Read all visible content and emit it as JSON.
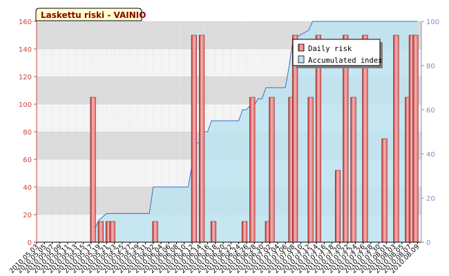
{
  "title": "Laskettu riski - VAINIO",
  "colors": {
    "bar": "#e86a6a",
    "bar_dark": "#b03030",
    "bar_light": "#f8b4b4",
    "area": "#bde3f0",
    "area_line": "#3a6cc8",
    "left_axis": "#cc4444",
    "right_axis": "#8888cc",
    "title_bg": "#ffffd0",
    "title_text": "#8b0000"
  },
  "chart_data": {
    "type": "bar",
    "title": "Laskettu riski - VAINIO",
    "xlabel": "",
    "ylabel": "",
    "ylim": [
      0,
      160
    ],
    "y2lim": [
      0,
      100
    ],
    "yticks": [
      0,
      20,
      40,
      60,
      80,
      100,
      120,
      140,
      160
    ],
    "y2ticks": [
      0,
      20,
      40,
      60,
      80,
      100
    ],
    "grid": true,
    "legend": "top-right",
    "xticks": [
      "2010.05.03",
      "2010.05.05",
      "2010.05.07",
      "2010.05.09",
      "2010.05.11",
      "2010.05.13",
      "2010.05.15",
      "2010.05.17",
      "2010.05.19",
      "2010.05.21",
      "2010.05.23",
      "2010.05.25",
      "2010.05.27",
      "2010.05.29",
      "2010.05.31",
      "2010.06.02",
      "2010.06.04",
      "2010.06.06",
      "2010.06.08",
      "2010.06.10",
      "2010.06.12",
      "2010.06.14",
      "2010.06.16",
      "2010.06.18",
      "2010.06.20",
      "2010.06.22",
      "2010.06.24",
      "2010.06.26",
      "2010.06.28",
      "2010.06.30",
      "2010.07.02",
      "2010.07.04",
      "2010.07.06",
      "2010.07.08",
      "2010.07.10",
      "2010.07.12",
      "2010.07.14",
      "2010.07.16",
      "2010.07.18",
      "2010.07.20",
      "2010.07.22",
      "2010.07.24",
      "2010.07.26",
      "2010.07.28",
      "2010.07.30",
      "2010.08.01",
      "2010.08.03",
      "2010.08.05",
      "2010.08.07",
      "2010.08.09"
    ],
    "series": [
      {
        "name": "Daily risk",
        "type": "bar",
        "axis": "left",
        "points": [
          [
            "2010.05.17",
            105
          ],
          [
            "2010.05.19",
            15
          ],
          [
            "2010.05.21",
            15
          ],
          [
            "2010.05.22",
            15
          ],
          [
            "2010.06.02",
            15
          ],
          [
            "2010.06.12",
            150
          ],
          [
            "2010.06.14",
            150
          ],
          [
            "2010.06.17",
            15
          ],
          [
            "2010.06.25",
            15
          ],
          [
            "2010.06.27",
            105
          ],
          [
            "2010.07.01",
            15
          ],
          [
            "2010.07.02",
            105
          ],
          [
            "2010.07.07",
            105
          ],
          [
            "2010.07.08",
            150
          ],
          [
            "2010.07.12",
            105
          ],
          [
            "2010.07.14",
            150
          ],
          [
            "2010.07.19",
            52
          ],
          [
            "2010.07.21",
            150
          ],
          [
            "2010.07.23",
            105
          ],
          [
            "2010.07.26",
            150
          ],
          [
            "2010.07.31",
            75
          ],
          [
            "2010.08.03",
            150
          ],
          [
            "2010.08.06",
            105
          ],
          [
            "2010.08.07",
            150
          ],
          [
            "2010.08.08",
            150
          ]
        ]
      },
      {
        "name": "Accumulated index",
        "type": "area",
        "axis": "right",
        "points": [
          [
            "2010.05.03",
            0
          ],
          [
            "2010.05.17",
            0
          ],
          [
            "2010.05.18",
            6
          ],
          [
            "2010.05.19",
            10
          ],
          [
            "2010.05.21",
            13
          ],
          [
            "2010.06.01",
            13
          ],
          [
            "2010.06.02",
            25
          ],
          [
            "2010.06.11",
            25
          ],
          [
            "2010.06.12",
            35
          ],
          [
            "2010.06.13",
            45
          ],
          [
            "2010.06.14",
            45
          ],
          [
            "2010.06.15",
            50
          ],
          [
            "2010.06.16",
            50
          ],
          [
            "2010.06.17",
            55
          ],
          [
            "2010.06.24",
            55
          ],
          [
            "2010.06.25",
            60
          ],
          [
            "2010.06.26",
            60
          ],
          [
            "2010.06.27",
            62
          ],
          [
            "2010.06.28",
            62
          ],
          [
            "2010.06.29",
            65
          ],
          [
            "2010.06.30",
            65
          ],
          [
            "2010.07.01",
            70
          ],
          [
            "2010.07.06",
            70
          ],
          [
            "2010.07.07",
            80
          ],
          [
            "2010.07.08",
            92
          ],
          [
            "2010.07.12",
            96
          ],
          [
            "2010.07.13",
            100
          ],
          [
            "2010.08.09",
            100
          ]
        ]
      }
    ]
  }
}
